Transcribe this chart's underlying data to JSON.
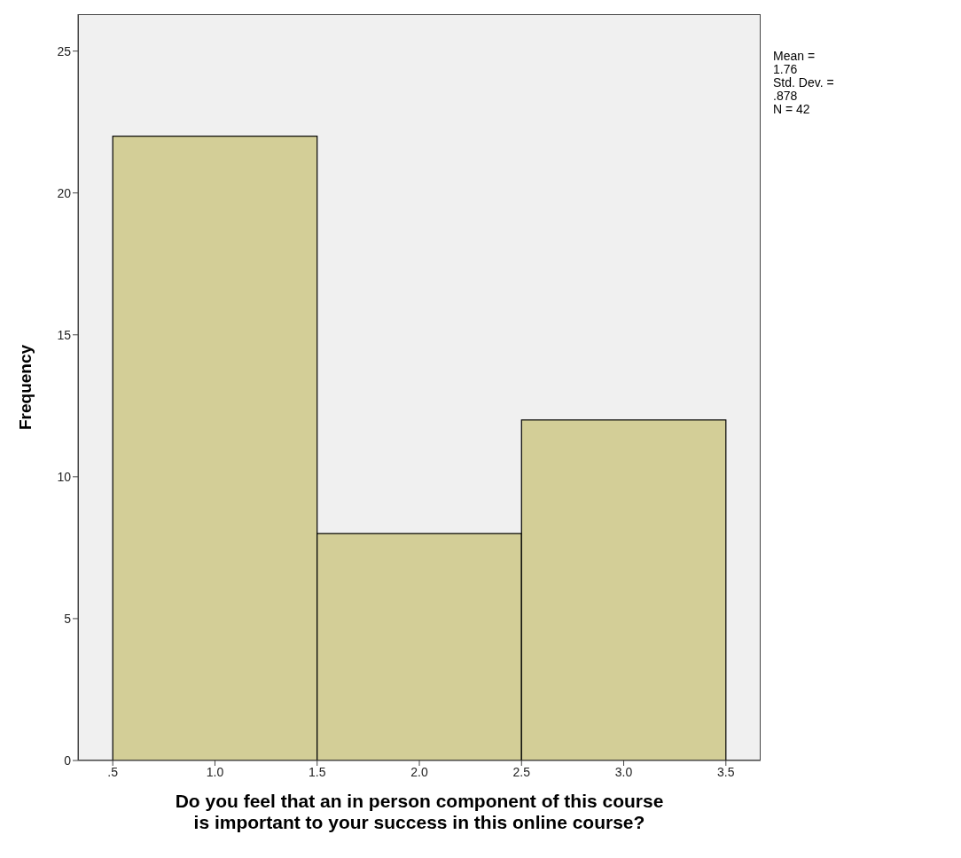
{
  "chart_data": {
    "type": "histogram",
    "xlabel": "Do you feel that an in person component of this course\nis important to your success in this online course?",
    "ylabel": "Frequency",
    "bins": [
      0.5,
      1.5,
      2.5,
      3.5
    ],
    "values": [
      22,
      8,
      12
    ],
    "color": "#d3ce97",
    "xlim": [
      0.33,
      3.67
    ],
    "xticks": [
      {
        "value": 0.5,
        "label": ".5"
      },
      {
        "value": 1,
        "label": "1.0"
      },
      {
        "value": 1.5,
        "label": "1.5"
      },
      {
        "value": 2,
        "label": "2.0"
      },
      {
        "value": 2.5,
        "label": "2.5"
      },
      {
        "value": 3,
        "label": "3.0"
      },
      {
        "value": 3.5,
        "label": "3.5"
      }
    ],
    "ylim": [
      0,
      26.3
    ],
    "yticks": [
      0,
      5,
      10,
      15,
      20,
      25
    ],
    "grid": false,
    "annotations": [
      "Mean = 1.76",
      "Std. Dev. = .878",
      "N = 42"
    ]
  }
}
